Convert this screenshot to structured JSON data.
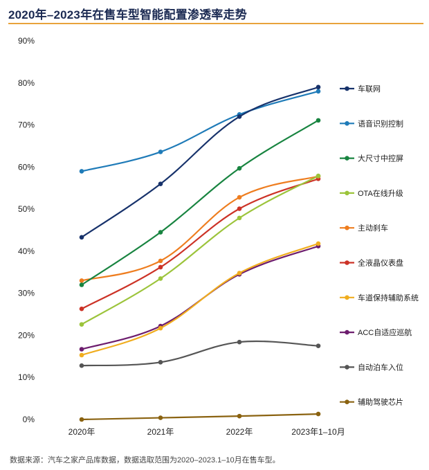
{
  "chart_data": {
    "type": "line",
    "title": "2020年–2023年在售车型智能配置渗透率走势",
    "xlabel": "",
    "ylabel": "",
    "categories": [
      "2020年",
      "2021年",
      "2022年",
      "2023年1–10月"
    ],
    "ylim": [
      0,
      90
    ],
    "yticks": [
      "0%",
      "10%",
      "20%",
      "30%",
      "40%",
      "50%",
      "60%",
      "70%",
      "80%",
      "90%"
    ],
    "grid": false,
    "legend_position": "right",
    "series": [
      {
        "name": "车联网",
        "color": "#17326b",
        "values": [
          43.3,
          56.0,
          72.0,
          79.0
        ]
      },
      {
        "name": "语音识别控制",
        "color": "#1f7bb8",
        "values": [
          59.0,
          63.6,
          72.5,
          78.0
        ]
      },
      {
        "name": "大尺寸中控屏",
        "color": "#188440",
        "values": [
          32.0,
          44.5,
          59.7,
          71.1
        ]
      },
      {
        "name": "OTA在线升级",
        "color": "#9cc43b",
        "values": [
          22.6,
          33.5,
          47.9,
          57.9
        ]
      },
      {
        "name": "主动刹车",
        "color": "#ee7d1f",
        "values": [
          33.0,
          37.7,
          52.8,
          57.8
        ]
      },
      {
        "name": "全液晶仪表盘",
        "color": "#cc3226",
        "values": [
          26.3,
          36.2,
          50.1,
          57.2
        ]
      },
      {
        "name": "车道保持辅助系统",
        "color": "#f0ad1f",
        "values": [
          15.3,
          21.7,
          34.8,
          41.8
        ]
      },
      {
        "name": "ACC自适应巡航",
        "color": "#6d1d6e",
        "values": [
          16.7,
          22.2,
          34.5,
          41.2
        ]
      },
      {
        "name": "自动泊车入位",
        "color": "#555555",
        "values": [
          12.8,
          13.6,
          18.4,
          17.5
        ]
      },
      {
        "name": "辅助驾驶芯片",
        "color": "#8a6210",
        "values": [
          0.0,
          0.4,
          0.8,
          1.3
        ]
      }
    ]
  },
  "footer": {
    "source": "数据来源：汽车之家产品库数据，数据选取范围为2020–2023.1–10月在售车型。"
  }
}
